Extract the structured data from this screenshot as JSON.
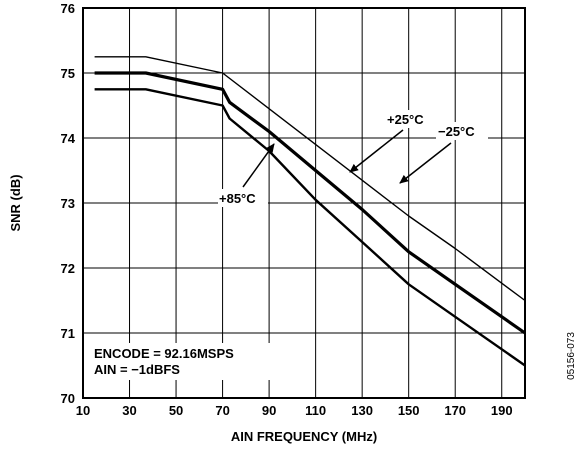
{
  "chart_data": {
    "type": "line",
    "xlabel": "AIN FREQUENCY (MHz)",
    "ylabel": "SNR (dB)",
    "xlim": [
      10,
      200
    ],
    "ylim": [
      70,
      76
    ],
    "x_ticks": [
      10,
      30,
      50,
      70,
      90,
      110,
      130,
      150,
      170,
      190
    ],
    "y_ticks": [
      70,
      71,
      72,
      73,
      74,
      75,
      76
    ],
    "grid": true,
    "series": [
      {
        "name": "−25°C",
        "x": [
          15,
          37,
          70,
          150,
          170,
          200
        ],
        "y": [
          75.25,
          75.25,
          75.0,
          72.8,
          72.3,
          71.5
        ]
      },
      {
        "name": "+25°C",
        "x": [
          15,
          37,
          70,
          73,
          90,
          110,
          130,
          150,
          170,
          200
        ],
        "y": [
          75.0,
          75.0,
          74.75,
          74.55,
          74.1,
          73.5,
          72.9,
          72.25,
          71.75,
          71.0
        ]
      },
      {
        "name": "+85°C",
        "x": [
          15,
          37,
          70,
          73,
          90,
          110,
          130,
          150,
          170,
          200
        ],
        "y": [
          74.75,
          74.75,
          74.5,
          74.3,
          73.8,
          73.05,
          72.4,
          71.75,
          71.25,
          70.5
        ]
      }
    ],
    "annotations": {
      "encode": "ENCODE = 92.16MSPS",
      "ain": "AIN = −1dBFS",
      "label_minus25": "−25°C",
      "label_plus25": "+25°C",
      "label_plus85": "+85°C"
    },
    "figure_code": "05156-073"
  }
}
